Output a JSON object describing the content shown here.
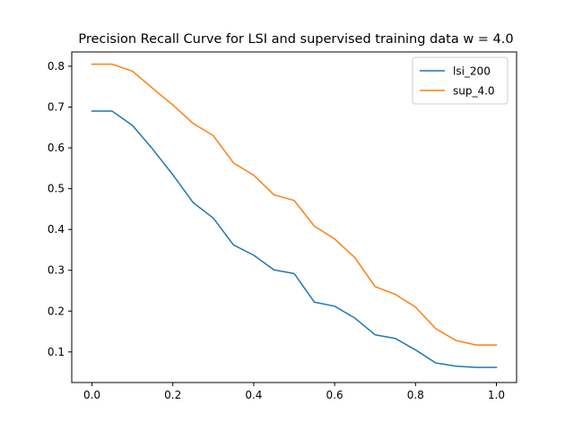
{
  "chart_data": {
    "type": "line",
    "title": "Precision Recall Curve for LSI and supervised training data w = 4.0",
    "xlabel": "",
    "ylabel": "",
    "xlim": [
      -0.05,
      1.05
    ],
    "ylim": [
      0.025,
      0.835
    ],
    "xticks": [
      0.0,
      0.2,
      0.4,
      0.6,
      0.8,
      1.0
    ],
    "xtick_labels": [
      "0.0",
      "0.2",
      "0.4",
      "0.6",
      "0.8",
      "1.0"
    ],
    "yticks": [
      0.1,
      0.2,
      0.3,
      0.4,
      0.5,
      0.6,
      0.7,
      0.8
    ],
    "ytick_labels": [
      "0.1",
      "0.2",
      "0.3",
      "0.4",
      "0.5",
      "0.6",
      "0.7",
      "0.8"
    ],
    "grid": false,
    "legend_position": "top-right",
    "x": [
      0.0,
      0.05,
      0.1,
      0.15,
      0.2,
      0.25,
      0.3,
      0.35,
      0.4,
      0.45,
      0.5,
      0.55,
      0.6,
      0.65,
      0.7,
      0.75,
      0.8,
      0.85,
      0.9,
      0.95,
      1.0
    ],
    "series": [
      {
        "name": "lsi_200",
        "color": "#1f77b4",
        "values": [
          0.69,
          0.69,
          0.655,
          0.597,
          0.534,
          0.466,
          0.428,
          0.362,
          0.337,
          0.301,
          0.292,
          0.222,
          0.212,
          0.183,
          0.142,
          0.133,
          0.105,
          0.073,
          0.065,
          0.062,
          0.062
        ]
      },
      {
        "name": "sup_4.0",
        "color": "#ff7f0e",
        "values": [
          0.805,
          0.805,
          0.788,
          0.746,
          0.705,
          0.66,
          0.63,
          0.563,
          0.533,
          0.485,
          0.471,
          0.408,
          0.377,
          0.331,
          0.26,
          0.241,
          0.21,
          0.157,
          0.128,
          0.117,
          0.117
        ]
      }
    ]
  }
}
